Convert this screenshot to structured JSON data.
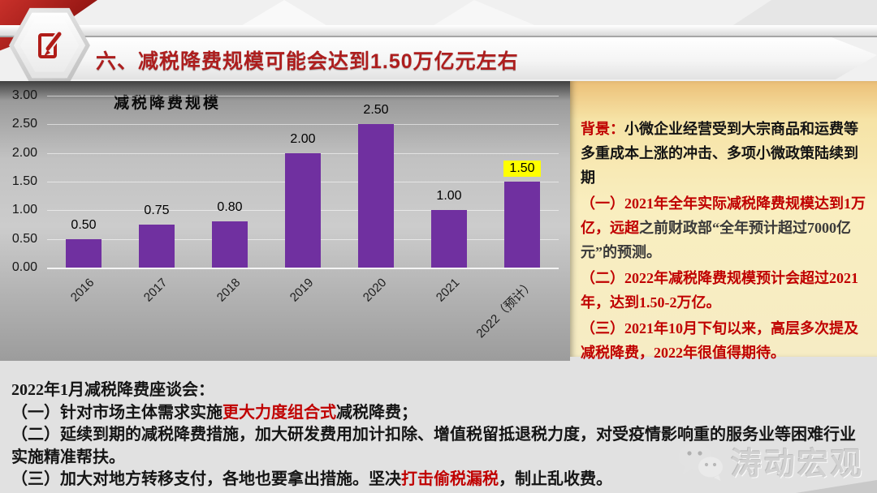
{
  "slide": {
    "title": "六、减税降费规模可能会达到1.50万亿元左右"
  },
  "chart_data": {
    "type": "bar",
    "title": "减税降费规模",
    "categories": [
      "2016",
      "2017",
      "2018",
      "2019",
      "2020",
      "2021",
      "2022（预计）"
    ],
    "values": [
      0.5,
      0.75,
      0.8,
      2.0,
      2.5,
      1.0,
      1.5
    ],
    "value_labels": [
      "0.50",
      "0.75",
      "0.80",
      "2.00",
      "2.50",
      "1.00",
      "1.50"
    ],
    "highlighted_index": 6,
    "bar_color": "#7030a0",
    "highlight_color": "#ffff00",
    "xlabel": "",
    "ylabel": "",
    "ylim": [
      0,
      3.0
    ],
    "ytick_step": 0.5,
    "yticks": [
      "0.00",
      "0.50",
      "1.00",
      "1.50",
      "2.00",
      "2.50",
      "3.00"
    ],
    "grid": true,
    "legend": false
  },
  "background_panel": {
    "heading": "背景：",
    "intro": "小微企业经营受到大宗商品和运费等多重成本上涨的冲击、多项小微政策陆续到期",
    "point1_red": "（一）2021年全年实际减税降费规模达到1万亿，远超",
    "point1_black": "之前财政部“全年预计超过7000亿元”的预测。",
    "point2": "（二）2022年减税降费规模预计会超过2021年，达到1.50-2万亿。",
    "point3": "（三）2021年10月下旬以来，高层多次提及减税降费，2022年很值得期待。"
  },
  "bottom_section": {
    "heading": "2022年1月减税降费座谈会：",
    "item1_pre": "（一）针对市场主体需求实施",
    "item1_red": "更大力度组合式",
    "item1_post": "减税降费；",
    "item2": "（二）延续到期的减税降费措施，加大研发费用加计扣除、增值税留抵退税力度，对受疫情影响重的服务业等困难行业实施精准帮扶。",
    "item3_pre": "（三）加大对地方转移支付，各地也要拿出措施。坚决",
    "item3_red": "打击偷税漏税",
    "item3_post": "，制止乱收费。"
  },
  "watermark": {
    "name": "涛动宏观",
    "icon": "wechat-icon"
  },
  "colors": {
    "title_red": "#ad1e1e",
    "text_red": "#c00000",
    "bar_purple": "#7030a0",
    "highlight_yellow": "#ffff00",
    "panel_khaki_top": "#ecc078",
    "panel_khaki_bottom": "#f6ecc4",
    "chart_bg_gray": "#c2c2c2"
  }
}
